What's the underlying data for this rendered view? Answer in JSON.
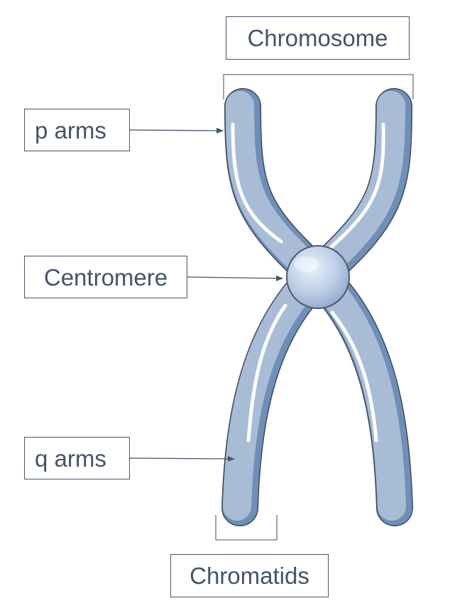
{
  "labels": {
    "chromosome": "Chromosome",
    "p_arms": "p arms",
    "centromere": "Centromere",
    "q_arms": "q arms",
    "chromatids": "Chromatids"
  },
  "colors": {
    "label_text": "#44546a",
    "label_border": "#44546a",
    "chromatid_fill": "#a9bcd6",
    "chromatid_shadow": "#6f8fb7",
    "chromatid_outline": "#3d4a5c",
    "centromere_fill": "#bfd0e8",
    "highlight": "#ffffff",
    "arrow": "#44546a"
  }
}
